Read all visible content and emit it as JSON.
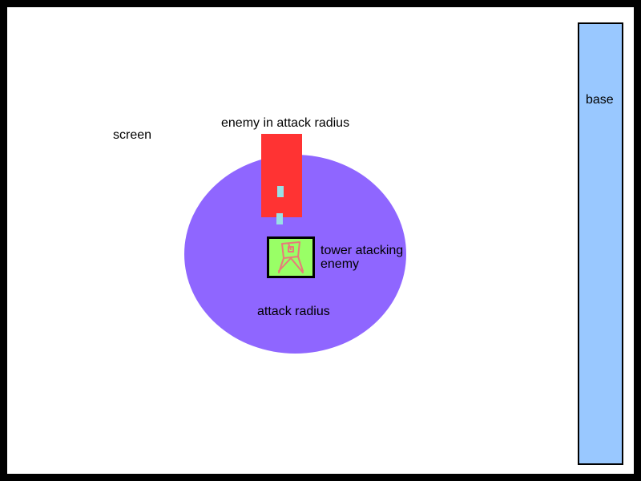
{
  "labels": {
    "screen": "screen",
    "enemy": "enemy in attack radius",
    "attack_radius": "attack radius",
    "tower": "tower atacking enemy",
    "base": "base"
  },
  "colors": {
    "background": "#ffffff",
    "border": "#000000",
    "attack_radius": "#8f66ff",
    "enemy": "#ff3333",
    "bullet": "#99e0e6",
    "tower": "#99ff66",
    "tower_icon": "#e87a7a",
    "base": "#99c8ff"
  },
  "icons": {
    "tower_icon": "tower-figure-icon"
  }
}
